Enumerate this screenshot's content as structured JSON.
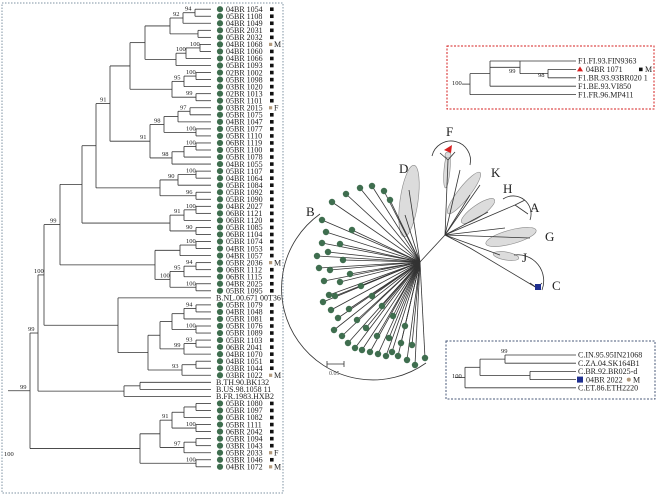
{
  "main_tree": {
    "taxa": [
      {
        "label": "04BR 1054",
        "mark": "dot",
        "flag": "square"
      },
      {
        "label": "05BR 1108",
        "mark": "dot",
        "flag": "square"
      },
      {
        "label": "04BR 1049",
        "mark": "dot",
        "flag": "square"
      },
      {
        "label": "05BR 2031",
        "mark": "dot",
        "flag": "square"
      },
      {
        "label": "05BR 2032",
        "mark": "dot",
        "flag": "square"
      },
      {
        "label": "04BR 1068",
        "mark": "dot",
        "flag": "M"
      },
      {
        "label": "04BR 1060",
        "mark": "dot",
        "flag": "square"
      },
      {
        "label": "04BR 1066",
        "mark": "dot",
        "flag": "square"
      },
      {
        "label": "05BR 1093",
        "mark": "dot",
        "flag": "square"
      },
      {
        "label": "02BR 1002",
        "mark": "dot",
        "flag": "square"
      },
      {
        "label": "05BR 1098",
        "mark": "dot",
        "flag": "square"
      },
      {
        "label": "03BR 1020",
        "mark": "dot",
        "flag": "square"
      },
      {
        "label": "02BR 1013",
        "mark": "dot",
        "flag": "square"
      },
      {
        "label": "05BR 1101",
        "mark": "dot",
        "flag": "square"
      },
      {
        "label": "03BR 2015",
        "mark": "dot",
        "flag": "F"
      },
      {
        "label": "05BR 1075",
        "mark": "dot",
        "flag": "square"
      },
      {
        "label": "04BR 1047",
        "mark": "dot",
        "flag": "square"
      },
      {
        "label": "05BR 1077",
        "mark": "dot",
        "flag": "square"
      },
      {
        "label": "05BR 1110",
        "mark": "dot",
        "flag": "square"
      },
      {
        "label": "06BR 1119",
        "mark": "dot",
        "flag": "square"
      },
      {
        "label": "05BR 1100",
        "mark": "dot",
        "flag": "square"
      },
      {
        "label": "05BR 1078",
        "mark": "dot",
        "flag": "square"
      },
      {
        "label": "04BR 1055",
        "mark": "dot",
        "flag": "square"
      },
      {
        "label": "05BR 1107",
        "mark": "dot",
        "flag": "square"
      },
      {
        "label": "04BR 1064",
        "mark": "dot",
        "flag": "square"
      },
      {
        "label": "05BR 1084",
        "mark": "dot",
        "flag": "square"
      },
      {
        "label": "05BR 1092",
        "mark": "dot",
        "flag": "square"
      },
      {
        "label": "05BR 1090",
        "mark": "dot",
        "flag": "square"
      },
      {
        "label": "04BR 2027",
        "mark": "dot",
        "flag": "square"
      },
      {
        "label": "06BR 1121",
        "mark": "dot",
        "flag": "square"
      },
      {
        "label": "06BR 1120",
        "mark": "dot",
        "flag": "square"
      },
      {
        "label": "05BR 1085",
        "mark": "dot",
        "flag": "square"
      },
      {
        "label": "06BR 1104",
        "mark": "dot",
        "flag": "square"
      },
      {
        "label": "05BR 1074",
        "mark": "dot",
        "flag": "square"
      },
      {
        "label": "04BR 1053",
        "mark": "dot",
        "flag": "square"
      },
      {
        "label": "04BR 1057",
        "mark": "dot",
        "flag": "square"
      },
      {
        "label": "05BR 2036",
        "mark": "dot",
        "flag": "M"
      },
      {
        "label": "06BR 1112",
        "mark": "dot",
        "flag": "square"
      },
      {
        "label": "06BR 1115",
        "mark": "dot",
        "flag": "square"
      },
      {
        "label": "04BR 2025",
        "mark": "dot",
        "flag": "square"
      },
      {
        "label": "05BR 1095",
        "mark": "dot",
        "flag": "square"
      },
      {
        "label": "B.NL.00.671 00T36",
        "mark": "none",
        "flag": ""
      },
      {
        "label": "05BR 1079",
        "mark": "dot",
        "flag": "square"
      },
      {
        "label": "04BR 1048",
        "mark": "dot",
        "flag": "square"
      },
      {
        "label": "05BR 1081",
        "mark": "dot",
        "flag": "square"
      },
      {
        "label": "05BR 1076",
        "mark": "dot",
        "flag": "square"
      },
      {
        "label": "05BR 1089",
        "mark": "dot",
        "flag": "square"
      },
      {
        "label": "05BR 1103",
        "mark": "dot",
        "flag": "square"
      },
      {
        "label": "06BR 2041",
        "mark": "dot",
        "flag": "square"
      },
      {
        "label": "04BR 1070",
        "mark": "dot",
        "flag": "square"
      },
      {
        "label": "04BR 1051",
        "mark": "dot",
        "flag": "square"
      },
      {
        "label": "03BR 1044",
        "mark": "dot",
        "flag": "square"
      },
      {
        "label": "03BR 1022",
        "mark": "dot",
        "flag": "M"
      },
      {
        "label": "B.TH.90.BK132",
        "mark": "none",
        "flag": ""
      },
      {
        "label": "B.US.98.1058 11",
        "mark": "none",
        "flag": ""
      },
      {
        "label": "B.FR.1983.HXB2",
        "mark": "none",
        "flag": ""
      },
      {
        "label": "05BR 1080",
        "mark": "dot",
        "flag": "square"
      },
      {
        "label": "05BR 1097",
        "mark": "dot",
        "flag": "square"
      },
      {
        "label": "05BR 1082",
        "mark": "dot",
        "flag": "square"
      },
      {
        "label": "05BR 1111",
        "mark": "dot",
        "flag": "square"
      },
      {
        "label": "06BR 2042",
        "mark": "dot",
        "flag": "square"
      },
      {
        "label": "05BR 1094",
        "mark": "dot",
        "flag": "square"
      },
      {
        "label": "03BR 1043",
        "mark": "dot",
        "flag": "square"
      },
      {
        "label": "05BR 2033",
        "mark": "dot",
        "flag": "F"
      },
      {
        "label": "03BR 1046",
        "mark": "dot",
        "flag": "square"
      },
      {
        "label": "04BR 1072",
        "mark": "dot",
        "flag": "M"
      }
    ],
    "bootstraps": [
      "92",
      "94",
      "100",
      "100",
      "95",
      "100",
      "99",
      "97",
      "100",
      "98",
      "91",
      "100",
      "98",
      "100",
      "90",
      "91",
      "96",
      "100",
      "91",
      "90",
      "100",
      "94",
      "95",
      "100",
      "100",
      "94",
      "100",
      "93",
      "99",
      "99",
      "100",
      "93",
      "91",
      "100",
      "97",
      "100"
    ]
  },
  "radial_tree": {
    "clades": [
      "B",
      "D",
      "F",
      "K",
      "H",
      "A",
      "G",
      "J",
      "C"
    ],
    "scale_label": "0.05"
  },
  "inset_f": {
    "taxa": [
      {
        "label": "F1.FI.93.FIN9363",
        "mark": "none",
        "flag": ""
      },
      {
        "label": "04BR 1071",
        "mark": "triangle",
        "flag": "M"
      },
      {
        "label": "F1.BR.93.93BR020 1",
        "mark": "none",
        "flag": ""
      },
      {
        "label": "F1.BE.93.VI850",
        "mark": "none",
        "flag": ""
      },
      {
        "label": "F1.FR.96.MP411",
        "mark": "none",
        "flag": ""
      }
    ],
    "bootstraps": [
      "100",
      "99",
      "98"
    ]
  },
  "inset_c": {
    "taxa": [
      {
        "label": "C.IN.95.95IN21068",
        "mark": "none",
        "flag": ""
      },
      {
        "label": "C.ZA.04.SK164B1",
        "mark": "none",
        "flag": ""
      },
      {
        "label": "C.BR.92.BR025-d",
        "mark": "none",
        "flag": ""
      },
      {
        "label": "04BR 2022",
        "mark": "square",
        "flag": "M"
      },
      {
        "label": "C.ET.86.ETH2220",
        "mark": "none",
        "flag": ""
      }
    ],
    "bootstraps": [
      "99",
      "100"
    ]
  },
  "colors": {
    "dot": "#3f6e4f",
    "flag_square": "#111111",
    "flag_letter": "#b39a7c",
    "triangle": "#d62020",
    "inset_c_square": "#1f2f8f",
    "border_main": "#7f93a3",
    "border_f": "#d62020",
    "border_c": "#4a5a7a",
    "clade_fill": "#dcdcdc"
  }
}
